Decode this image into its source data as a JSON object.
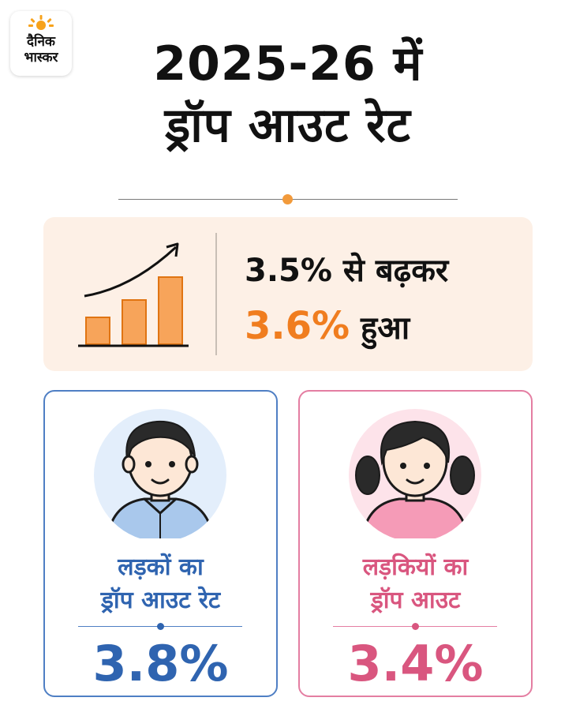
{
  "logo": {
    "line1": "दैनिक",
    "line2": "भास्कर",
    "sun_color": "#f7a21b"
  },
  "title": {
    "line1": "2025-26 में",
    "line2": "ड्रॉप आउट रेट"
  },
  "summary": {
    "line1": "3.5% से बढ़कर",
    "highlight": "3.6%",
    "line2_suffix": " हुआ",
    "icon": "rising-bar-chart-icon",
    "accent_color": "#f07d1f"
  },
  "boys": {
    "label_line1": "लड़कों का",
    "label_line2": "ड्रॉप आउट रेट",
    "value": "3.8%",
    "icon": "boy-avatar-icon",
    "color": "#2f64b0"
  },
  "girls": {
    "label_line1": "लड़कियों का",
    "label_line2": "ड्रॉप आउट",
    "value": "3.4%",
    "icon": "girl-avatar-icon",
    "color": "#d9567f"
  }
}
